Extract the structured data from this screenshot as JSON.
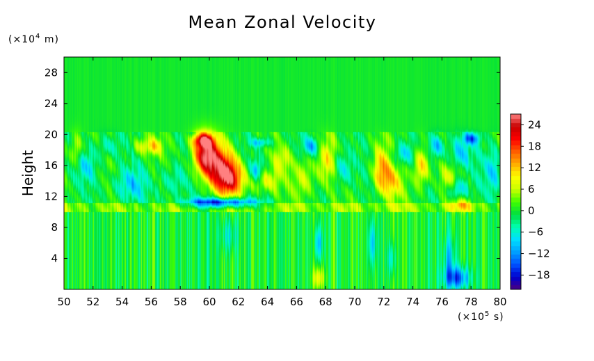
{
  "chart_data": {
    "type": "heatmap",
    "title": "Mean Zonal Velocity",
    "xlabel": "",
    "ylabel": "Height",
    "x_unit": {
      "prefix": "(×10",
      "exp": "5",
      "suffix": " s)"
    },
    "y_unit": {
      "prefix": "(×10",
      "exp": "4",
      "suffix": " m)"
    },
    "xlim": [
      50,
      80
    ],
    "ylim": [
      0,
      30
    ],
    "x_ticks": [
      "50",
      "52",
      "54",
      "56",
      "58",
      "60",
      "62",
      "64",
      "66",
      "68",
      "70",
      "72",
      "74",
      "76",
      "78",
      "80"
    ],
    "y_ticks": [
      "4",
      "8",
      "12",
      "16",
      "20",
      "24",
      "28"
    ],
    "colorbar": {
      "ticks": [
        "24",
        "18",
        "12",
        "6",
        "0",
        "-6",
        "-12",
        "-18"
      ],
      "range": [
        -22,
        27
      ],
      "colors": [
        "#4b0082",
        "#0000cd",
        "#0050ff",
        "#00a0ff",
        "#00e0ff",
        "#00ffb0",
        "#00e040",
        "#40ff00",
        "#c8ff00",
        "#ffff00",
        "#ffb000",
        "#ff6000",
        "#ff0000",
        "#c80000",
        "#ff8080"
      ]
    },
    "grid": false,
    "background_value": 0,
    "features": [
      {
        "t": 59.7,
        "h": 17.5,
        "v": 24,
        "st": 0.6,
        "sh": 1.8
      },
      {
        "t": 60.8,
        "h": 15.5,
        "v": 18,
        "st": 0.8,
        "sh": 2.0
      },
      {
        "t": 61.5,
        "h": 14.2,
        "v": 14,
        "st": 0.7,
        "sh": 1.5
      },
      {
        "t": 60.8,
        "h": 11.2,
        "v": -20,
        "st": 1.6,
        "sh": 0.45
      },
      {
        "t": 59.5,
        "h": 19.3,
        "v": 16,
        "st": 0.5,
        "sh": 0.6
      },
      {
        "t": 63.2,
        "h": 15.3,
        "v": -10,
        "st": 0.3,
        "sh": 1.0
      },
      {
        "t": 63.5,
        "h": 19.0,
        "v": -9,
        "st": 0.5,
        "sh": 0.4
      },
      {
        "t": 63.8,
        "h": 14.0,
        "v": 8,
        "st": 0.7,
        "sh": 1.0
      },
      {
        "t": 65.0,
        "h": 16.8,
        "v": 7,
        "st": 0.4,
        "sh": 1.2
      },
      {
        "t": 50.8,
        "h": 18.0,
        "v": 8,
        "st": 0.3,
        "sh": 1.5
      },
      {
        "t": 51.5,
        "h": 16.0,
        "v": -7,
        "st": 0.5,
        "sh": 1.5
      },
      {
        "t": 53.0,
        "h": 18.5,
        "v": -6,
        "st": 0.5,
        "sh": 1.0
      },
      {
        "t": 54.5,
        "h": 13.5,
        "v": -8,
        "st": 0.8,
        "sh": 1.5
      },
      {
        "t": 55.3,
        "h": 18.5,
        "v": 7,
        "st": 0.4,
        "sh": 0.8
      },
      {
        "t": 56.2,
        "h": 18.5,
        "v": 9,
        "st": 0.4,
        "sh": 0.7
      },
      {
        "t": 57.5,
        "h": 14.0,
        "v": -6,
        "st": 0.6,
        "sh": 1.5
      },
      {
        "t": 66.5,
        "h": 14.5,
        "v": 8,
        "st": 0.5,
        "sh": 2.0
      },
      {
        "t": 67.0,
        "h": 18.5,
        "v": -10,
        "st": 0.4,
        "sh": 0.8
      },
      {
        "t": 68.0,
        "h": 16.5,
        "v": 9,
        "st": 0.4,
        "sh": 2.0
      },
      {
        "t": 69.2,
        "h": 15.5,
        "v": -7,
        "st": 0.5,
        "sh": 1.5
      },
      {
        "t": 71.8,
        "h": 15.5,
        "v": 13,
        "st": 0.4,
        "sh": 2.0
      },
      {
        "t": 72.5,
        "h": 13.8,
        "v": 9,
        "st": 0.5,
        "sh": 1.5
      },
      {
        "t": 73.3,
        "h": 17.5,
        "v": -8,
        "st": 0.5,
        "sh": 1.0
      },
      {
        "t": 74.6,
        "h": 16.0,
        "v": 12,
        "st": 0.4,
        "sh": 1.8
      },
      {
        "t": 75.6,
        "h": 18.5,
        "v": -10,
        "st": 0.4,
        "sh": 1.0
      },
      {
        "t": 76.5,
        "h": 14.0,
        "v": 8,
        "st": 0.5,
        "sh": 1.5
      },
      {
        "t": 77.2,
        "h": 17.5,
        "v": -9,
        "st": 0.5,
        "sh": 1.5
      },
      {
        "t": 77.0,
        "h": 13.0,
        "v": -12,
        "st": 0.5,
        "sh": 1.0
      },
      {
        "t": 78.0,
        "h": 19.5,
        "v": -12,
        "st": 0.4,
        "sh": 0.5
      },
      {
        "t": 77.3,
        "h": 11.0,
        "v": 8,
        "st": 0.6,
        "sh": 0.6
      },
      {
        "t": 79.5,
        "h": 15.5,
        "v": -7,
        "st": 0.5,
        "sh": 2.0
      },
      {
        "t": 67.5,
        "h": 6.0,
        "v": -9,
        "st": 0.2,
        "sh": 1.5
      },
      {
        "t": 71.2,
        "h": 6.0,
        "v": -9,
        "st": 0.2,
        "sh": 2.0
      },
      {
        "t": 72.5,
        "h": 4.0,
        "v": -7,
        "st": 0.2,
        "sh": 1.5
      },
      {
        "t": 77.0,
        "h": 1.5,
        "v": -15,
        "st": 0.6,
        "sh": 1.0
      },
      {
        "t": 76.5,
        "h": 4.0,
        "v": -8,
        "st": 0.3,
        "sh": 2.0
      },
      {
        "t": 67.5,
        "h": 1.5,
        "v": 9,
        "st": 0.3,
        "sh": 1.0
      },
      {
        "t": 61.3,
        "h": 7.0,
        "v": -6,
        "st": 0.4,
        "sh": 1.5
      }
    ]
  }
}
